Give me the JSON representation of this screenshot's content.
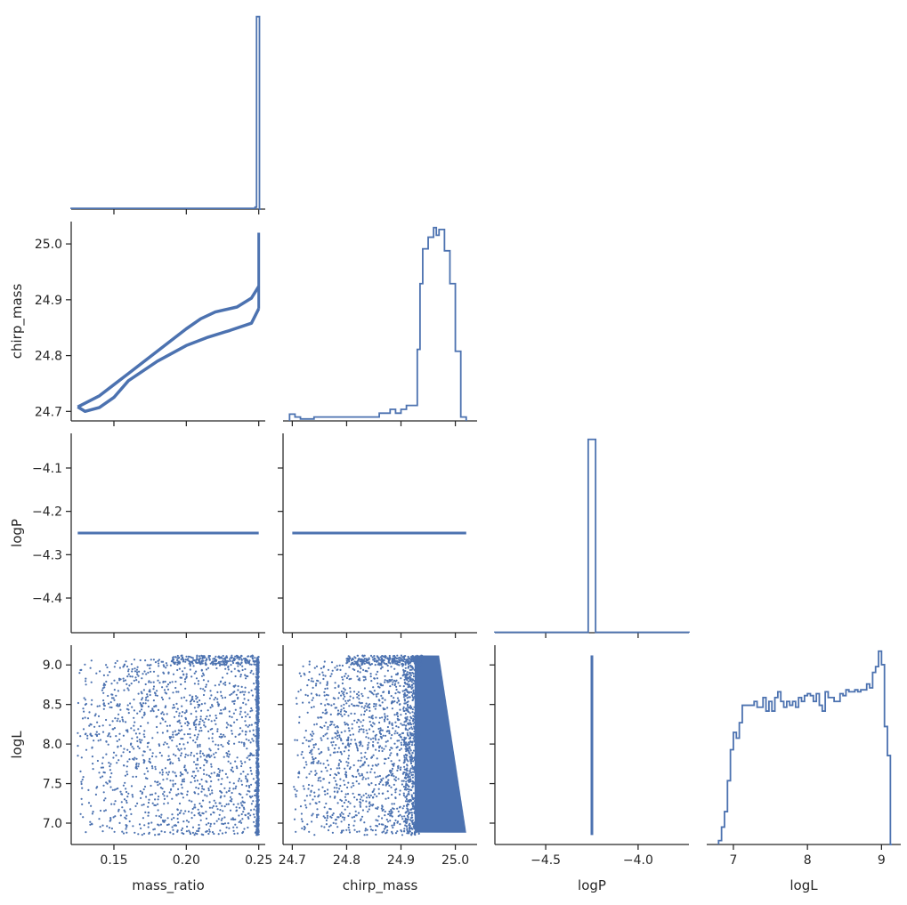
{
  "chart_data": {
    "type": "corner_plot",
    "series_color": "#4c72b0",
    "axis_color": "#262626",
    "variables": [
      "mass_ratio",
      "chirp_mass",
      "logP",
      "logL"
    ],
    "axes": {
      "mass_ratio": {
        "label": "mass_ratio",
        "range": [
          0.1205,
          0.2545
        ],
        "ticks": [
          0.15,
          0.2,
          0.25
        ],
        "tick_labels": [
          "0.15",
          "0.20",
          "0.25"
        ]
      },
      "chirp_mass": {
        "label": "chirp_mass",
        "range": [
          24.683,
          25.04
        ],
        "ticks": [
          24.7,
          24.8,
          24.9,
          25.0
        ],
        "tick_labels": [
          "24.7",
          "24.8",
          "24.9",
          "25.0"
        ]
      },
      "logP": {
        "label": "logP",
        "range": [
          -4.48,
          -4.02
        ],
        "ticks": [
          -4.4,
          -4.3,
          -4.2,
          -4.1
        ],
        "tick_labels": [
          "−4.4",
          "−4.3",
          "−4.2",
          "−4.1"
        ],
        "x_range": [
          -4.775,
          -3.725
        ],
        "x_ticks": [
          -4.5,
          -4.0
        ],
        "x_tick_labels": [
          "−4.5",
          "−4.0"
        ]
      },
      "logL": {
        "label": "logL",
        "range": [
          6.73,
          9.25
        ],
        "ticks": [
          7.0,
          7.5,
          8.0,
          8.5,
          9.0
        ],
        "tick_labels": [
          "7.0",
          "7.5",
          "8.0",
          "8.5",
          "9.0"
        ],
        "x_range": [
          6.64,
          9.26
        ],
        "x_ticks": [
          7,
          8,
          9
        ],
        "x_tick_labels": [
          "7",
          "8",
          "9"
        ]
      }
    },
    "logP_value": -4.25,
    "histograms": {
      "mass_ratio": {
        "bins": [
          [
            0.1205,
            0.2475,
            0.004
          ],
          [
            0.2475,
            0.2485,
            0.01
          ],
          [
            0.2485,
            0.2495,
            1.0
          ],
          [
            0.2495,
            0.2505,
            1.0
          ],
          [
            0.2505,
            0.2515,
            0.0
          ]
        ]
      },
      "chirp_mass": {
        "bins": [
          [
            24.695,
            24.705,
            0.035
          ],
          [
            24.705,
            24.715,
            0.02
          ],
          [
            24.715,
            24.74,
            0.01
          ],
          [
            24.74,
            24.76,
            0.02
          ],
          [
            24.76,
            24.86,
            0.02
          ],
          [
            24.86,
            24.88,
            0.04
          ],
          [
            24.88,
            24.89,
            0.06
          ],
          [
            24.89,
            24.9,
            0.04
          ],
          [
            24.9,
            24.91,
            0.06
          ],
          [
            24.91,
            24.93,
            0.08
          ],
          [
            24.93,
            24.935,
            0.37
          ],
          [
            24.935,
            24.94,
            0.71
          ],
          [
            24.94,
            24.95,
            0.89
          ],
          [
            24.95,
            24.96,
            0.95
          ],
          [
            24.96,
            24.965,
            1.0
          ],
          [
            24.965,
            24.97,
            0.96
          ],
          [
            24.97,
            24.98,
            0.99
          ],
          [
            24.98,
            24.99,
            0.88
          ],
          [
            24.99,
            25.0,
            0.71
          ],
          [
            25.0,
            25.01,
            0.36
          ],
          [
            25.01,
            25.02,
            0.02
          ]
        ]
      },
      "logP": {
        "bins": [
          [
            -4.775,
            -4.27,
            0.002
          ],
          [
            -4.27,
            -4.23,
            1.0
          ],
          [
            -4.23,
            -3.725,
            0.002
          ]
        ]
      },
      "logL": {
        "bins": [
          [
            6.8,
            6.84,
            0.02
          ],
          [
            6.84,
            6.88,
            0.09
          ],
          [
            6.88,
            6.92,
            0.17
          ],
          [
            6.92,
            6.96,
            0.33
          ],
          [
            6.96,
            7.0,
            0.49
          ],
          [
            7.0,
            7.04,
            0.58
          ],
          [
            7.04,
            7.08,
            0.55
          ],
          [
            7.08,
            7.12,
            0.63
          ],
          [
            7.12,
            7.2,
            0.72
          ],
          [
            7.2,
            7.28,
            0.72
          ],
          [
            7.28,
            7.32,
            0.74
          ],
          [
            7.32,
            7.4,
            0.71
          ],
          [
            7.4,
            7.44,
            0.76
          ],
          [
            7.44,
            7.48,
            0.69
          ],
          [
            7.48,
            7.52,
            0.74
          ],
          [
            7.52,
            7.56,
            0.69
          ],
          [
            7.56,
            7.6,
            0.76
          ],
          [
            7.6,
            7.64,
            0.79
          ],
          [
            7.64,
            7.68,
            0.74
          ],
          [
            7.68,
            7.72,
            0.71
          ],
          [
            7.72,
            7.76,
            0.74
          ],
          [
            7.76,
            7.8,
            0.72
          ],
          [
            7.8,
            7.84,
            0.74
          ],
          [
            7.84,
            7.88,
            0.71
          ],
          [
            7.88,
            7.92,
            0.76
          ],
          [
            7.92,
            7.96,
            0.74
          ],
          [
            7.96,
            8.0,
            0.77
          ],
          [
            8.0,
            8.04,
            0.78
          ],
          [
            8.04,
            8.08,
            0.77
          ],
          [
            8.08,
            8.12,
            0.74
          ],
          [
            8.12,
            8.16,
            0.78
          ],
          [
            8.16,
            8.2,
            0.72
          ],
          [
            8.2,
            8.24,
            0.69
          ],
          [
            8.24,
            8.28,
            0.79
          ],
          [
            8.28,
            8.32,
            0.76
          ],
          [
            8.32,
            8.36,
            0.76
          ],
          [
            8.36,
            8.44,
            0.74
          ],
          [
            8.44,
            8.48,
            0.78
          ],
          [
            8.48,
            8.52,
            0.77
          ],
          [
            8.52,
            8.56,
            0.8
          ],
          [
            8.56,
            8.64,
            0.79
          ],
          [
            8.64,
            8.68,
            0.8
          ],
          [
            8.68,
            8.72,
            0.79
          ],
          [
            8.72,
            8.76,
            0.8
          ],
          [
            8.76,
            8.8,
            0.8
          ],
          [
            8.8,
            8.84,
            0.83
          ],
          [
            8.84,
            8.88,
            0.81
          ],
          [
            8.88,
            8.92,
            0.89
          ],
          [
            8.92,
            8.96,
            0.92
          ],
          [
            8.96,
            9.0,
            1.0
          ],
          [
            9.0,
            9.04,
            0.93
          ],
          [
            9.04,
            9.08,
            0.61
          ],
          [
            9.08,
            9.12,
            0.46
          ],
          [
            9.12,
            9.14,
            0.0
          ]
        ]
      }
    },
    "relation_mass_ratio_chirp_mass": {
      "upper_branch": [
        [
          0.125,
          24.708
        ],
        [
          0.14,
          24.728
        ],
        [
          0.16,
          24.768
        ],
        [
          0.18,
          24.808
        ],
        [
          0.2,
          24.848
        ],
        [
          0.21,
          24.866
        ],
        [
          0.22,
          24.878
        ],
        [
          0.235,
          24.887
        ],
        [
          0.245,
          24.903
        ],
        [
          0.25,
          24.924
        ]
      ],
      "lower_branch": [
        [
          0.125,
          24.708
        ],
        [
          0.13,
          24.7
        ],
        [
          0.14,
          24.707
        ],
        [
          0.15,
          24.725
        ],
        [
          0.16,
          24.755
        ],
        [
          0.18,
          24.79
        ],
        [
          0.2,
          24.818
        ],
        [
          0.215,
          24.833
        ],
        [
          0.23,
          24.845
        ],
        [
          0.245,
          24.858
        ],
        [
          0.25,
          24.884
        ]
      ],
      "vertical_segment": [
        0.25,
        24.884,
        25.02
      ]
    },
    "scatter_summary": {
      "mass_ratio_range": [
        0.125,
        0.25
      ],
      "chirp_mass_range": [
        24.7,
        25.02
      ],
      "logL_range": [
        6.85,
        9.12
      ],
      "dense_column_mass_ratio": 0.25,
      "dense_band_chirp_mass": [
        24.93,
        25.02
      ]
    }
  }
}
